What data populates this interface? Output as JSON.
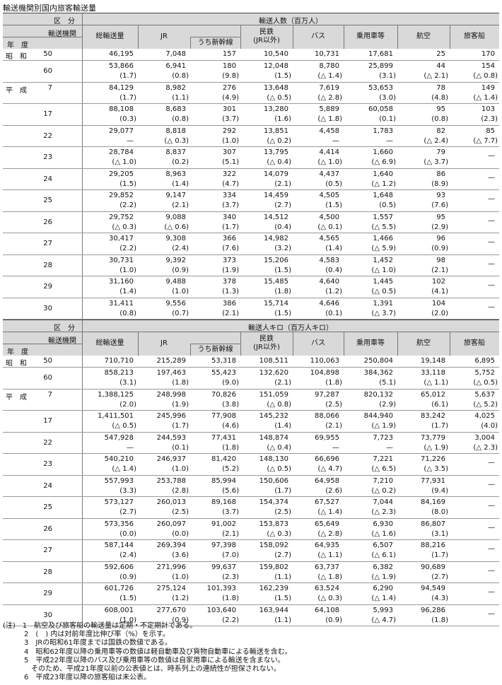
{
  "title": "輸送機関別国内旅客輸送量",
  "header": {
    "category": "区　分",
    "mode": "輸送機関",
    "year": "年　度",
    "columns": [
      "総輸送量",
      "JR",
      "うち新幹線",
      "民鉄\n(JR以外)",
      "バス",
      "乗用車等",
      "航空",
      "旅客船"
    ]
  },
  "tables": [
    {
      "group_title": "輸送人数（百万人）",
      "rows": [
        {
          "era": "昭　和",
          "year": "50",
          "values": [
            "46,195",
            "7,048",
            "157",
            "10,540",
            "10,731",
            "17,681",
            "25",
            "170"
          ],
          "pcts": [
            "",
            "",
            "",
            "",
            "",
            "",
            "",
            ""
          ]
        },
        {
          "era": "",
          "year": "60",
          "values": [
            "53,866",
            "6,941",
            "180",
            "12,048",
            "8,780",
            "25,899",
            "44",
            "154"
          ],
          "pcts": [
            "(1.7)",
            "(0.8)",
            "(9.8)",
            "(1.5)",
            "(△ 1.4)",
            "(3.1)",
            "(△ 2.1)",
            "(△ 0.8)"
          ]
        },
        {
          "era": "平　成",
          "year": "7",
          "values": [
            "84,129",
            "8,982",
            "276",
            "13,648",
            "7,619",
            "53,653",
            "78",
            "149"
          ],
          "pcts": [
            "(1.7)",
            "(1.1)",
            "(4.9)",
            "(△ 0.5)",
            "(△ 2.8)",
            "(3.0)",
            "(4.8)",
            "(△ 1.4)"
          ]
        },
        {
          "era": "",
          "year": "17",
          "values": [
            "88,108",
            "8,683",
            "301",
            "13,280",
            "5,889",
            "60,058",
            "95",
            "103"
          ],
          "pcts": [
            "(0.3)",
            "(0.8)",
            "(3.7)",
            "(1.6)",
            "(△ 1.8)",
            "(0.1)",
            "(0.8)",
            "(2.3)"
          ]
        },
        {
          "era": "",
          "year": "22",
          "values": [
            "29,077",
            "8,818",
            "292",
            "13,851",
            "4,458",
            "1,783",
            "82",
            "85"
          ],
          "pcts": [
            "—",
            "(△ 0.3)",
            "(1.0)",
            "(△ 0.2)",
            "—",
            "—",
            "(△ 2.4)",
            "(△ 7.7)"
          ]
        },
        {
          "era": "",
          "year": "23",
          "values": [
            "28,784",
            "8,837",
            "307",
            "13,795",
            "4,414",
            "1,660",
            "79",
            "—"
          ],
          "pcts": [
            "(△ 1.0)",
            "(0.2)",
            "(5.1)",
            "(△ 0.4)",
            "(△ 1.0)",
            "(△ 6.9)",
            "(△ 3.7)",
            "—"
          ]
        },
        {
          "era": "",
          "year": "24",
          "values": [
            "29,205",
            "8,963",
            "322",
            "14,079",
            "4,437",
            "1,640",
            "86",
            "—"
          ],
          "pcts": [
            "(1.5)",
            "(1.4)",
            "(4.7)",
            "(2.1)",
            "(0.5)",
            "(△ 1.2)",
            "(8.9)",
            "—"
          ]
        },
        {
          "era": "",
          "year": "25",
          "values": [
            "29,852",
            "9,147",
            "334",
            "14,459",
            "4,505",
            "1,648",
            "93",
            "—"
          ],
          "pcts": [
            "(2.2)",
            "(2.1)",
            "(3.7)",
            "(2.7)",
            "(1.5)",
            "(0.5)",
            "(7.6)",
            "—"
          ]
        },
        {
          "era": "",
          "year": "26",
          "values": [
            "29,752",
            "9,088",
            "340",
            "14,512",
            "4,500",
            "1,557",
            "95",
            "—"
          ],
          "pcts": [
            "(△ 0.3)",
            "(△ 0.6)",
            "(1.7)",
            "(0.4)",
            "(△ 0.1)",
            "(△ 5.5)",
            "(2.9)",
            "—"
          ]
        },
        {
          "era": "",
          "year": "27",
          "values": [
            "30,417",
            "9,308",
            "366",
            "14,982",
            "4,565",
            "1,466",
            "96",
            "—"
          ],
          "pcts": [
            "(2.2)",
            "(2.4)",
            "(7.6)",
            "(3.2)",
            "(1.4)",
            "(△ 5.9)",
            "(0.9)",
            "—"
          ]
        },
        {
          "era": "",
          "year": "28",
          "values": [
            "30,731",
            "9,392",
            "373",
            "15,206",
            "4,583",
            "1,452",
            "98",
            "—"
          ],
          "pcts": [
            "(1.0)",
            "(0.9)",
            "(1.9)",
            "(1.5)",
            "(0.4)",
            "(△ 1.0)",
            "(2.1)",
            "—"
          ]
        },
        {
          "era": "",
          "year": "29",
          "values": [
            "31,160",
            "9,488",
            "378",
            "15,485",
            "4,640",
            "1,445",
            "102",
            "—"
          ],
          "pcts": [
            "(1.4)",
            "(1.0)",
            "(1.3)",
            "(1.8)",
            "(1.2)",
            "(△ 0.5)",
            "(4.1)",
            "—"
          ]
        },
        {
          "era": "",
          "year": "30",
          "values": [
            "31,411",
            "9,556",
            "386",
            "15,714",
            "4,646",
            "1,391",
            "104",
            "—"
          ],
          "pcts": [
            "(0.8)",
            "(0.7)",
            "(2.1)",
            "(1.5)",
            "(0.1)",
            "(△ 3.7)",
            "(2.0)",
            "—"
          ]
        }
      ]
    },
    {
      "group_title": "輸送人キロ（百万人キロ）",
      "rows": [
        {
          "era": "昭　和",
          "year": "50",
          "values": [
            "710,710",
            "215,289",
            "53,318",
            "108,511",
            "110,063",
            "250,804",
            "19,148",
            "6,895"
          ],
          "pcts": [
            "",
            "",
            "",
            "",
            "",
            "",
            "",
            ""
          ]
        },
        {
          "era": "",
          "year": "60",
          "values": [
            "858,213",
            "197,463",
            "55,423",
            "132,620",
            "104,898",
            "384,362",
            "33,118",
            "5,752"
          ],
          "pcts": [
            "(3.1)",
            "(1.8)",
            "(9.0)",
            "(2.1)",
            "(1.8)",
            "(5.1)",
            "(△ 1.1)",
            "(△ 0.5)"
          ]
        },
        {
          "era": "平　成",
          "year": "7",
          "values": [
            "1,388,125",
            "248,998",
            "70,826",
            "151,059",
            "97,287",
            "820,132",
            "65,012",
            "5,637"
          ],
          "pcts": [
            "(2.0)",
            "(1.9)",
            "(3.8)",
            "(△ 0.8)",
            "(2.5)",
            "(2.9)",
            "(6.1)",
            "(△ 5.2)"
          ]
        },
        {
          "era": "",
          "year": "17",
          "values": [
            "1,411,501",
            "245,996",
            "77,908",
            "145,232",
            "88,066",
            "844,940",
            "83,242",
            "4,025"
          ],
          "pcts": [
            "(△ 0.5)",
            "(1.7)",
            "(4.6)",
            "(1.4)",
            "(2.1)",
            "(△ 1.9)",
            "(1.7)",
            "(4.0)"
          ]
        },
        {
          "era": "",
          "year": "22",
          "values": [
            "547,928",
            "244,593",
            "77,431",
            "148,874",
            "69,955",
            "7,723",
            "73,779",
            "3,004"
          ],
          "pcts": [
            "—",
            "(0.1)",
            "(1.8)",
            "(△ 0.4)",
            "—",
            "—",
            "(△ 1.9)",
            "(△ 2.3)"
          ]
        },
        {
          "era": "",
          "year": "23",
          "values": [
            "540,210",
            "246,937",
            "81,420",
            "148,130",
            "66,696",
            "7,221",
            "71,226",
            "—"
          ],
          "pcts": [
            "(△ 1.4)",
            "(1.0)",
            "(5.2)",
            "(△ 0.5)",
            "(△ 4.7)",
            "(△ 6.5)",
            "(△ 3.5)",
            "—"
          ]
        },
        {
          "era": "",
          "year": "24",
          "values": [
            "557,993",
            "253,788",
            "85,994",
            "150,606",
            "64,958",
            "7,210",
            "77,931",
            "—"
          ],
          "pcts": [
            "(3.3)",
            "(2.8)",
            "(5.6)",
            "(1.7)",
            "(2.6)",
            "(△ 0.2)",
            "(9.4)",
            "—"
          ]
        },
        {
          "era": "",
          "year": "25",
          "values": [
            "573,127",
            "260,013",
            "89,168",
            "154,374",
            "67,527",
            "7,044",
            "84,169",
            "—"
          ],
          "pcts": [
            "(2.7)",
            "(2.5)",
            "(3.7)",
            "(2.5)",
            "(△ 1.4)",
            "(△ 2.3)",
            "(8.0)",
            "—"
          ]
        },
        {
          "era": "",
          "year": "26",
          "values": [
            "573,356",
            "260,097",
            "91,002",
            "153,873",
            "65,649",
            "6,930",
            "86,807",
            "—"
          ],
          "pcts": [
            "(0.0)",
            "(0.0)",
            "(2.1)",
            "(△ 0.3)",
            "(△ 2.8)",
            "(△ 1.6)",
            "(3.1)",
            "—"
          ]
        },
        {
          "era": "",
          "year": "27",
          "values": [
            "587,144",
            "269,394",
            "97,398",
            "158,092",
            "64,935",
            "6,507",
            "88,216",
            "—"
          ],
          "pcts": [
            "(2.4)",
            "(3.6)",
            "(7.0)",
            "(2.7)",
            "(△ 1.1)",
            "(△ 6.1)",
            "(1.7)",
            "—"
          ]
        },
        {
          "era": "",
          "year": "28",
          "values": [
            "592,606",
            "271,996",
            "99,637",
            "159,802",
            "63,737",
            "6,382",
            "90,689",
            "—"
          ],
          "pcts": [
            "(0.9)",
            "(1.0)",
            "(2.3)",
            "(1.1)",
            "(△ 1.8)",
            "(△ 1.9)",
            "(2.7)",
            "—"
          ]
        },
        {
          "era": "",
          "year": "29",
          "values": [
            "601,726",
            "275,124",
            "101,393",
            "162,239",
            "63,524",
            "6,290",
            "94,549",
            "—"
          ],
          "pcts": [
            "(1.5)",
            "(1.2)",
            "(1.8)",
            "(1.5)",
            "(△ 0.3)",
            "(△ 1.4)",
            "(4.3)",
            "—"
          ]
        },
        {
          "era": "",
          "year": "30",
          "values": [
            "608,001",
            "277,670",
            "103,640",
            "163,944",
            "64,108",
            "5,993",
            "96,286",
            "—"
          ],
          "pcts": [
            "(1.0)",
            "(0.9)",
            "(2.2)",
            "(1.1)",
            "(0.9)",
            "(△ 4.7)",
            "(1.8)",
            "—"
          ]
        }
      ]
    }
  ],
  "notes": [
    "(注)　1　航空及び旅客船の輸送量は定期・不定期計である。",
    "　　　2　(　) 内は対前年度比伸び率（%）を示す。",
    "　　　3　JRの昭和61年度までは国鉄の数値である。",
    "　　　4　昭和62年度以降の乗用車等の数値は軽自動車及び貨物自動車による輸送を含む。",
    "　　　5　平成22年度以降のバス及び乗用車等の数値は自家用車による輸送を含まない。",
    "　　　　そのため、平成21年度以前の公表値とは、時系列上の連続性が担保されない。",
    "　　　6　平成23年度以降の旅客船は未公表。"
  ]
}
